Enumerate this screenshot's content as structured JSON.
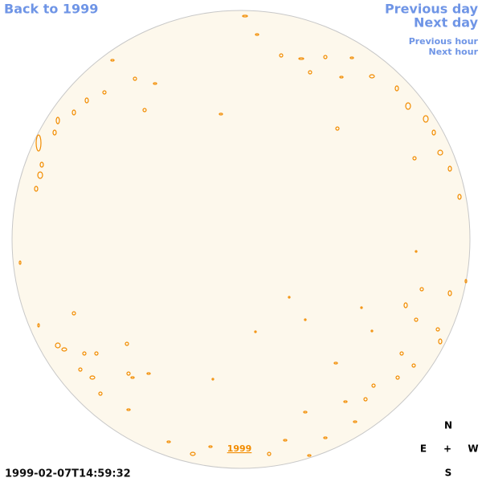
{
  "navigation": {
    "back": "Back to 1999",
    "previous_day": "Previous day",
    "next_day": "Next day",
    "previous_hour": "Previous hour",
    "next_hour": "Next hour"
  },
  "timestamp": "1999-02-07T14:59:32",
  "disk_label": "1999",
  "compass": {
    "north": "N",
    "east": "E",
    "center": "+",
    "west": "W",
    "south": "S"
  }
}
